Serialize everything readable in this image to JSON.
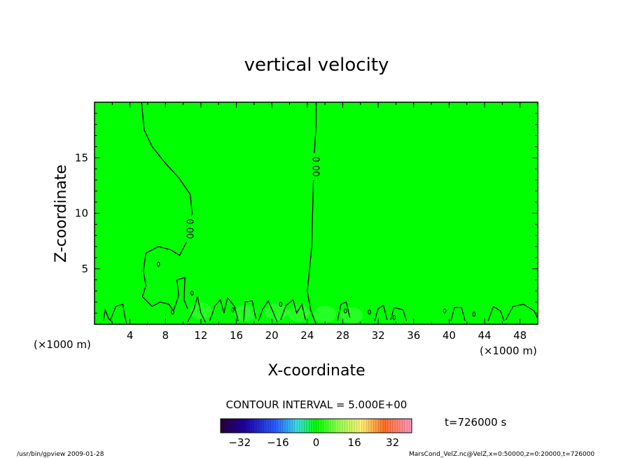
{
  "chart_data": {
    "type": "heatmap",
    "title": "vertical velocity",
    "xlabel": "X-coordinate",
    "ylabel": "Z-coordinate",
    "x_unit": "(×1000 m)",
    "xlim": [
      0,
      50
    ],
    "ylim": [
      0,
      20
    ],
    "x_ticks": [
      4,
      8,
      12,
      16,
      20,
      24,
      28,
      32,
      36,
      40,
      44,
      48
    ],
    "y_ticks": [
      5,
      10,
      15
    ],
    "contour_label": "0.00",
    "contour_interval": "CONTOUR INTERVAL = 5.000E+00",
    "time_label": "t=726000  s",
    "field_color": "#00ff00",
    "colorbar": {
      "range": [
        -40,
        40
      ],
      "ticks": [
        -32,
        -16,
        0,
        16,
        32
      ]
    },
    "zero_contours": [
      {
        "label_at": [
          10.8,
          8.6
        ],
        "points": [
          [
            5.3,
            20
          ],
          [
            5.6,
            17.5
          ],
          [
            6.5,
            16
          ],
          [
            8.0,
            14.5
          ],
          [
            9.5,
            13.2
          ],
          [
            10.8,
            11.7
          ],
          [
            11.0,
            10.0
          ],
          [
            10.6,
            8.8
          ],
          [
            10.5,
            7.6
          ],
          [
            9.6,
            6.2
          ],
          [
            8.6,
            6.7
          ],
          [
            7.2,
            7.0
          ],
          [
            5.8,
            6.4
          ],
          [
            5.5,
            4.8
          ],
          [
            5.8,
            3.5
          ],
          [
            5.4,
            2.5
          ],
          [
            6.5,
            1.6
          ],
          [
            7.4,
            2.0
          ],
          [
            8.4,
            1.8
          ],
          [
            8.9,
            1.2
          ],
          [
            9.5,
            2.6
          ],
          [
            9.3,
            4.0
          ],
          [
            10.2,
            4.2
          ],
          [
            10.1,
            2.2
          ],
          [
            10.5,
            1.4
          ]
        ]
      },
      {
        "label_at": [
          25.0,
          14.2
        ],
        "points": [
          [
            25.0,
            20
          ],
          [
            25.0,
            18
          ],
          [
            24.8,
            15.5
          ],
          [
            24.7,
            13
          ],
          [
            24.6,
            10
          ],
          [
            24.5,
            7
          ],
          [
            24.2,
            4.5
          ],
          [
            24.0,
            3.0
          ],
          [
            24.4,
            1.2
          ],
          [
            25.0,
            0
          ]
        ]
      }
    ],
    "near_surface_contours": [
      [
        [
          1.0,
          0.3
        ],
        [
          1.2,
          1.3
        ],
        [
          1.6,
          0.5
        ],
        [
          2.0,
          0.2
        ]
      ],
      [
        [
          1.8,
          0.4
        ],
        [
          2.4,
          1.6
        ],
        [
          3.2,
          1.8
        ],
        [
          3.4,
          0.8
        ],
        [
          3.6,
          0.1
        ]
      ],
      [
        [
          10.5,
          0.2
        ],
        [
          11.2,
          1.3
        ],
        [
          11.6,
          2.5
        ],
        [
          12.0,
          1.0
        ],
        [
          12.5,
          0.2
        ]
      ],
      [
        [
          13.0,
          0.3
        ],
        [
          13.6,
          1.7
        ],
        [
          14.2,
          2.2
        ],
        [
          14.6,
          1.0
        ],
        [
          15.0,
          2.4
        ],
        [
          15.8,
          1.6
        ],
        [
          16.2,
          0.3
        ]
      ],
      [
        [
          16.8,
          0.2
        ],
        [
          17.0,
          2.0
        ],
        [
          17.8,
          2.1
        ],
        [
          18.2,
          0.5
        ]
      ],
      [
        [
          18.5,
          0.3
        ],
        [
          19.0,
          1.4
        ],
        [
          19.6,
          2.1
        ],
        [
          20.2,
          1.0
        ],
        [
          20.6,
          0.2
        ]
      ],
      [
        [
          21.0,
          0.4
        ],
        [
          21.6,
          1.7
        ],
        [
          22.4,
          2.2
        ],
        [
          22.8,
          1.0
        ],
        [
          23.4,
          1.8
        ],
        [
          23.8,
          0.4
        ]
      ],
      [
        [
          27.4,
          0.3
        ],
        [
          27.8,
          1.8
        ],
        [
          28.4,
          2.0
        ],
        [
          28.8,
          0.6
        ]
      ],
      [
        [
          31.6,
          0.3
        ],
        [
          32.0,
          1.4
        ],
        [
          32.6,
          1.7
        ],
        [
          33.0,
          0.4
        ]
      ],
      [
        [
          33.4,
          0.4
        ],
        [
          33.8,
          1.5
        ],
        [
          34.8,
          1.3
        ],
        [
          35.2,
          0.3
        ]
      ],
      [
        [
          40.2,
          0.3
        ],
        [
          40.6,
          1.5
        ],
        [
          41.4,
          1.5
        ],
        [
          41.8,
          0.3
        ]
      ],
      [
        [
          44.4,
          0.3
        ],
        [
          45.0,
          1.6
        ],
        [
          45.8,
          1.2
        ],
        [
          46.2,
          0.3
        ]
      ],
      [
        [
          46.4,
          0.4
        ],
        [
          47.2,
          1.6
        ],
        [
          48.4,
          1.8
        ],
        [
          49.6,
          1.2
        ],
        [
          50,
          0.5
        ]
      ]
    ],
    "small_contours": [
      [
        7.2,
        5.4
      ],
      [
        11.0,
        2.8
      ],
      [
        21.0,
        1.8
      ],
      [
        28.3,
        1.2
      ],
      [
        31.0,
        1.1
      ],
      [
        33.8,
        0.6
      ],
      [
        39.5,
        1.2
      ],
      [
        42.8,
        0.9
      ],
      [
        15.6,
        1.3
      ],
      [
        8.8,
        1.1
      ]
    ],
    "grid": false,
    "legend": "none"
  },
  "footer": {
    "left": "/usr/bin/gpview   2009-01-28",
    "right": "MarsCond_VelZ.nc@VelZ,x=0:50000,z=0:20000,t=726000"
  }
}
